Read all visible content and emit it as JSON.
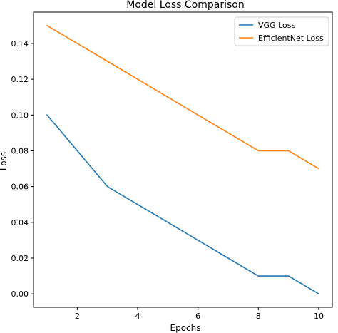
{
  "chart_data": {
    "type": "line",
    "title": "Model Loss Comparison",
    "xlabel": "Epochs",
    "ylabel": "Loss",
    "x": [
      1,
      2,
      3,
      4,
      5,
      6,
      7,
      8,
      9,
      10
    ],
    "series": [
      {
        "name": "VGG Loss",
        "color": "#1f77b4",
        "values": [
          0.1,
          0.08,
          0.06,
          0.05,
          0.04,
          0.03,
          0.02,
          0.01,
          0.01,
          0.0
        ]
      },
      {
        "name": "EfficientNet Loss",
        "color": "#ff7f0e",
        "values": [
          0.15,
          0.14,
          0.13,
          0.12,
          0.11,
          0.1,
          0.09,
          0.08,
          0.08,
          0.07
        ]
      }
    ],
    "xlim": [
      0.55,
      10.45
    ],
    "ylim": [
      -0.0075,
      0.1575
    ],
    "xticks": [
      2,
      4,
      6,
      8,
      10
    ],
    "xtick_labels": [
      "2",
      "4",
      "6",
      "8",
      "10"
    ],
    "yticks": [
      0.0,
      0.02,
      0.04,
      0.06,
      0.08,
      0.1,
      0.12,
      0.14
    ],
    "ytick_labels": [
      "0.00",
      "0.02",
      "0.04",
      "0.06",
      "0.08",
      "0.10",
      "0.12",
      "0.14"
    ],
    "grid": false,
    "legend_position": "top-right"
  }
}
